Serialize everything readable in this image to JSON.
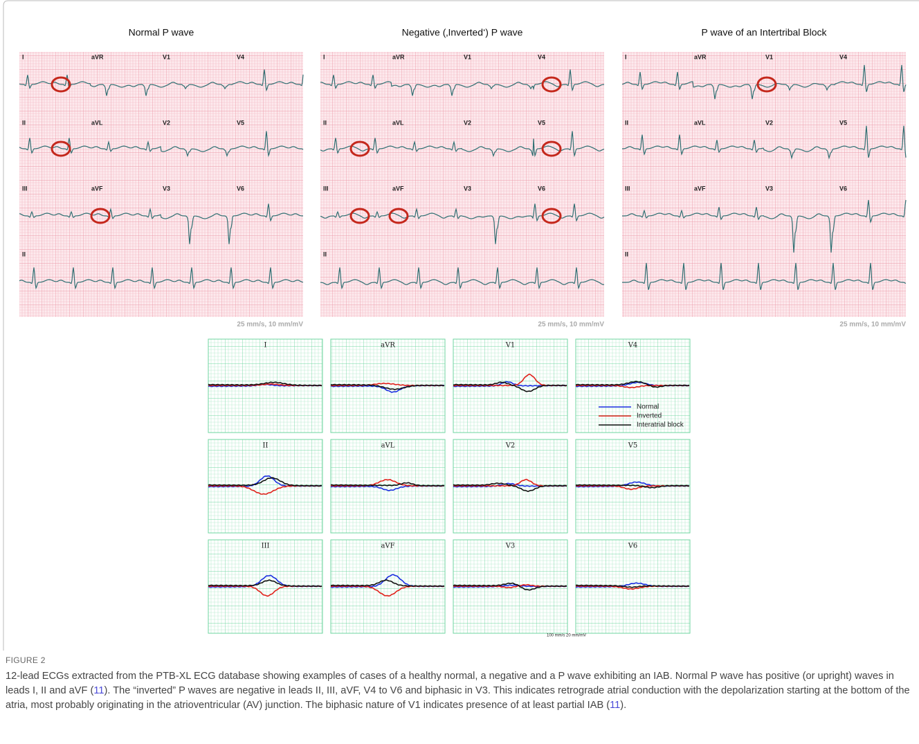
{
  "figure": {
    "panels": [
      {
        "title": "Normal P wave",
        "leads": [
          "I",
          "aVR",
          "V1",
          "V4",
          "II",
          "aVL",
          "V2",
          "V5",
          "III",
          "aVF",
          "V3",
          "V6",
          "II"
        ],
        "scale": "25 mm/s, 10 mm/mV"
      },
      {
        "title": "Negative (‚Inverted‘) P wave",
        "leads": [
          "I",
          "aVR",
          "V1",
          "V4",
          "II",
          "aVL",
          "V2",
          "V5",
          "III",
          "aVF",
          "V3",
          "V6",
          "II"
        ],
        "scale": "25 mm/s, 10 mm/mV"
      },
      {
        "title": "P wave of an Intertribal Block",
        "leads": [
          "I",
          "aVR",
          "V1",
          "V4",
          "II",
          "aVL",
          "V2",
          "V5",
          "III",
          "aVF",
          "V3",
          "V6",
          "II"
        ],
        "scale": "25 mm/s, 10 mm/mV"
      }
    ],
    "averages": {
      "leads": [
        "I",
        "aVR",
        "V1",
        "V4",
        "II",
        "aVL",
        "V2",
        "V5",
        "III",
        "aVF",
        "V3",
        "V6"
      ],
      "legend": [
        "Normal",
        "Inverted",
        "Interatrial block"
      ],
      "scale": "100 mm/s  20 mm/mV"
    },
    "label": "FIGURE 2",
    "caption": [
      "12-lead ECGs extracted from the PTB-XL ECG database showing examples of cases of a healthy normal, a negative and a P wave exhibiting an IAB. Normal P wave has positive (or upright) waves in leads I, II and aVF (",
      "11",
      "). The “inverted” P waves are negative in leads II, III, aVF, V4 to V6 and biphasic in V3. This indicates retrograde atrial conduction with the depolarization starting at the bottom of the atria, most probably originating in the atrioventricular (AV) junction. The biphasic nature of V1 indicates presence of at least partial IAB (",
      "11",
      ")."
    ]
  }
}
